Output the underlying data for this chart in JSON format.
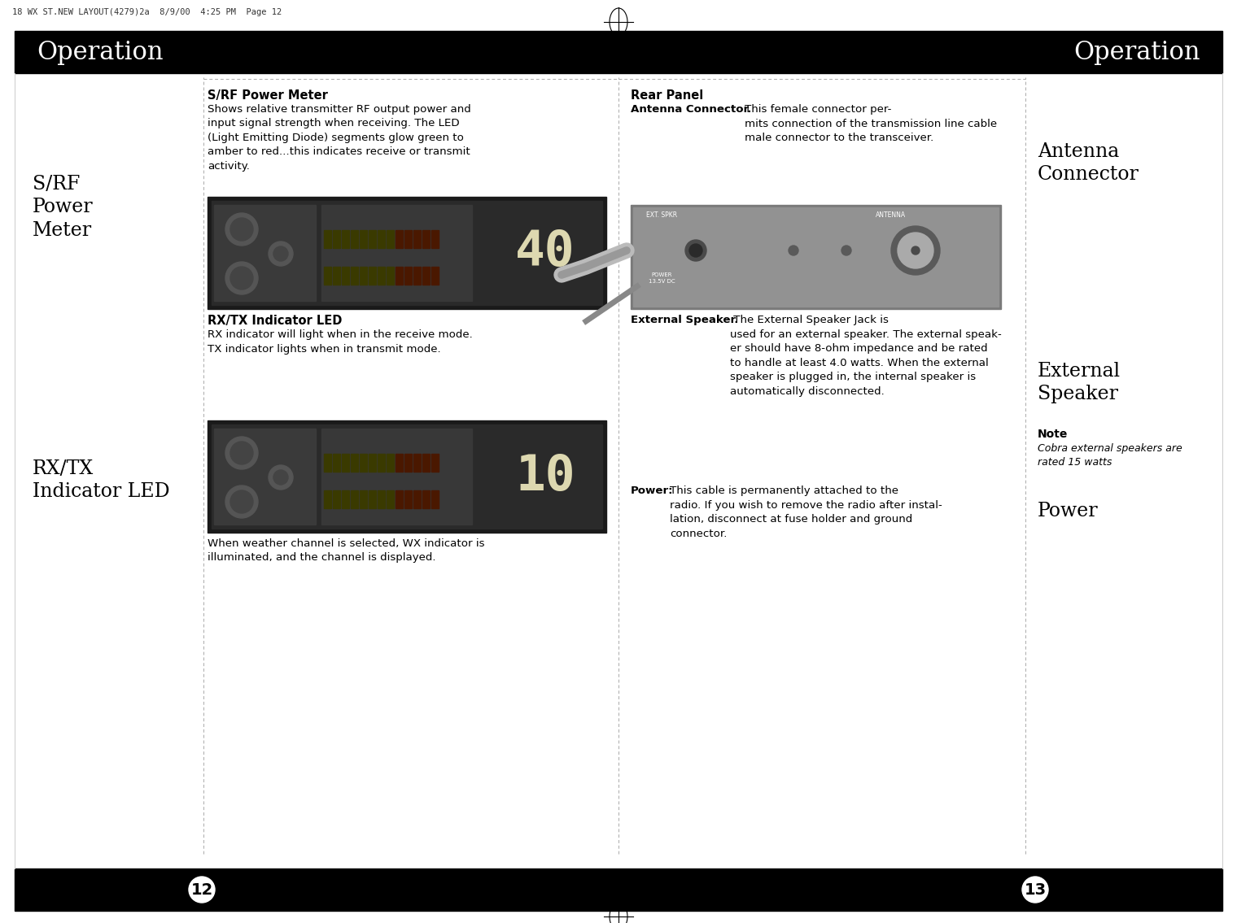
{
  "bg_color": "#ffffff",
  "black_bar_color": "#000000",
  "header_text_color": "#ffffff",
  "header_text_left": "Operation",
  "header_text_right": "Operation",
  "header_font_size": 22,
  "page_num_left": "12",
  "page_num_right": "13",
  "page_num_font_size": 14,
  "top_meta_text": "18 WX ST.NEW LAYOUT(4279)2a  8/9/00  4:25 PM  Page 12",
  "col1_label1": "S/RF\nPower\nMeter",
  "col1_label2": "RX/TX\nIndicator LED",
  "col2_heading1": "S/RF Power Meter",
  "col2_body1": "Shows relative transmitter RF output power and\ninput signal strength when receiving. The LED\n(Light Emitting Diode) segments glow green to\namber to red...this indicates receive or transmit\nactivity.",
  "col2_heading2": "RX/TX Indicator LED",
  "col2_body2": "RX indicator will light when in the receive mode.\nTX indicator lights when in transmit mode.",
  "col2_body3": "When weather channel is selected, WX indicator is\nilluminated, and the channel is displayed.",
  "col3_heading": "Rear Panel",
  "col3_subhead1": "Antenna Connector.",
  "col3_body1": "This female connector per-\nmits connection of the transmission line cable\nmale connector to the transceiver.",
  "col3_subhead2": "External Speaker.",
  "col3_body2": " The External Speaker Jack is\nused for an external speaker. The external speak-\ner should have 8-ohm impedance and be rated\nto handle at least 4.0 watts. When the external\nspeaker is plugged in, the internal speaker is\nautomatically disconnected.",
  "col3_subhead3": "Power:",
  "col3_body3": "This cable is permanently attached to the\nradio. If you wish to remove the radio after instal-\nlation, disconnect at fuse holder and ground\nconnector.",
  "col4_label1": "Antenna\nConnector",
  "col4_label2": "External\nSpeaker",
  "col4_note_head": "Note",
  "col4_note_body": "Cobra external speakers are\nrated 15 watts",
  "col4_label3": "Power",
  "text_color": "#000000"
}
